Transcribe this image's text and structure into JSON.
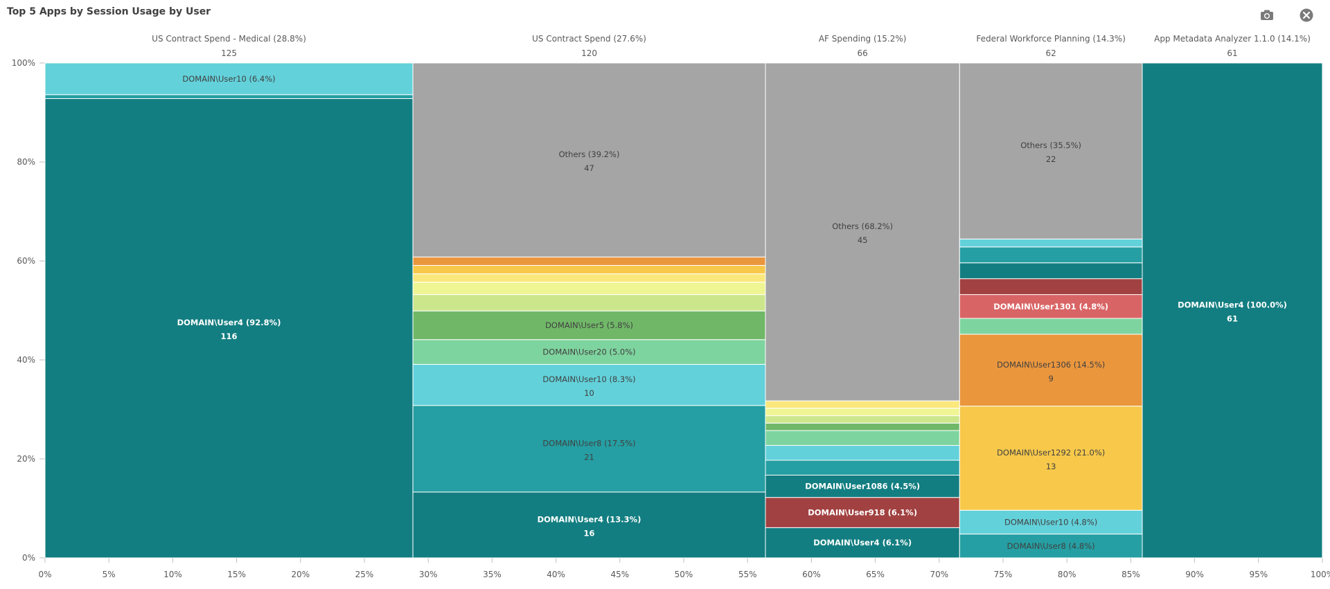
{
  "title": "Top 5 Apps by Session Usage by User",
  "toolbar": {
    "snapshot_icon": "camera-icon",
    "close_icon": "close-circle-icon"
  },
  "colors": {
    "teal_dark": "#137e81",
    "teal": "#259fa3",
    "teal_light": "#62d1da",
    "green": "#70b868",
    "green_light": "#7ed49e",
    "lime": "#cce68c",
    "yellow_light": "#eff592",
    "yellow": "#fbe87c",
    "yellow_dark": "#f7c84a",
    "orange": "#ea963d",
    "red_light": "#d96465",
    "red_dark": "#a24141",
    "gray": "#a5a5a5"
  },
  "chart_data": {
    "type": "mekko",
    "title": "Top 5 Apps by Session Usage by User",
    "x_axis": {
      "ticks": [
        "0%",
        "5%",
        "10%",
        "15%",
        "20%",
        "25%",
        "30%",
        "35%",
        "40%",
        "45%",
        "50%",
        "55%",
        "60%",
        "65%",
        "70%",
        "75%",
        "80%",
        "85%",
        "90%",
        "95%",
        "100%"
      ]
    },
    "y_axis": {
      "ticks": [
        "0%",
        "20%",
        "40%",
        "60%",
        "80%",
        "100%"
      ]
    },
    "columns": [
      {
        "name": "US Contract Spend - Medical (28.8%)",
        "total": "125",
        "share": 28.8,
        "segments": [
          {
            "pct": 92.8,
            "color": "#137e81",
            "label": "DOMAIN\\User4 (92.8%)",
            "value": "116",
            "text": "light"
          },
          {
            "pct": 0.8,
            "color": "#259fa3"
          },
          {
            "pct": 6.4,
            "color": "#62d1da",
            "label": "DOMAIN\\User10 (6.4%)",
            "text": "dark"
          }
        ]
      },
      {
        "name": "US Contract Spend (27.6%)",
        "total": "120",
        "share": 27.6,
        "segments": [
          {
            "pct": 13.3,
            "color": "#137e81",
            "label": "DOMAIN\\User4 (13.3%)",
            "value": "16",
            "text": "light"
          },
          {
            "pct": 17.5,
            "color": "#259fa3",
            "label": "DOMAIN\\User8 (17.5%)",
            "value": "21",
            "text": "dark"
          },
          {
            "pct": 8.3,
            "color": "#62d1da",
            "label": "DOMAIN\\User10 (8.3%)",
            "value": "10",
            "text": "dark"
          },
          {
            "pct": 5.0,
            "color": "#7ed49e",
            "label": "DOMAIN\\User20 (5.0%)",
            "text": "dark"
          },
          {
            "pct": 5.8,
            "color": "#70b868",
            "label": "DOMAIN\\User5 (5.8%)",
            "text": "dark"
          },
          {
            "pct": 3.3,
            "color": "#cce68c"
          },
          {
            "pct": 2.5,
            "color": "#eff592"
          },
          {
            "pct": 1.7,
            "color": "#fbe87c"
          },
          {
            "pct": 1.7,
            "color": "#f7c84a"
          },
          {
            "pct": 1.7,
            "color": "#ea963d"
          },
          {
            "pct": 39.2,
            "color": "#a5a5a5",
            "label": "Others (39.2%)",
            "value": "47",
            "text": "dark"
          }
        ]
      },
      {
        "name": "AF Spending (15.2%)",
        "total": "66",
        "share": 15.2,
        "segments": [
          {
            "pct": 6.1,
            "color": "#137e81",
            "label": "DOMAIN\\User4 (6.1%)",
            "text": "light"
          },
          {
            "pct": 6.1,
            "color": "#a24141",
            "label": "DOMAIN\\User918 (6.1%)",
            "text": "light"
          },
          {
            "pct": 4.5,
            "color": "#137e81",
            "label": "DOMAIN\\User1086 (4.5%)",
            "text": "light"
          },
          {
            "pct": 3.0,
            "color": "#259fa3"
          },
          {
            "pct": 3.0,
            "color": "#62d1da"
          },
          {
            "pct": 3.0,
            "color": "#7ed49e"
          },
          {
            "pct": 1.5,
            "color": "#70b868"
          },
          {
            "pct": 1.5,
            "color": "#cce68c"
          },
          {
            "pct": 1.5,
            "color": "#eff592"
          },
          {
            "pct": 1.5,
            "color": "#fbe87c"
          },
          {
            "pct": 68.2,
            "color": "#a5a5a5",
            "label": "Others (68.2%)",
            "value": "45",
            "text": "dark"
          }
        ]
      },
      {
        "name": "Federal Workforce Planning (14.3%)",
        "total": "62",
        "share": 14.3,
        "segments": [
          {
            "pct": 4.8,
            "color": "#259fa3",
            "label": "DOMAIN\\User8 (4.8%)",
            "text": "dark"
          },
          {
            "pct": 4.8,
            "color": "#62d1da",
            "label": "DOMAIN\\User10 (4.8%)",
            "text": "dark"
          },
          {
            "pct": 21.0,
            "color": "#f7c84a",
            "label": "DOMAIN\\User1292 (21.0%)",
            "value": "13",
            "text": "dark"
          },
          {
            "pct": 14.5,
            "color": "#ea963d",
            "label": "DOMAIN\\User1306 (14.5%)",
            "value": "9",
            "text": "dark"
          },
          {
            "pct": 3.2,
            "color": "#7ed49e"
          },
          {
            "pct": 4.8,
            "color": "#d96465",
            "label": "DOMAIN\\User1301 (4.8%)",
            "text": "light"
          },
          {
            "pct": 3.2,
            "color": "#a24141"
          },
          {
            "pct": 3.2,
            "color": "#137e81"
          },
          {
            "pct": 3.2,
            "color": "#259fa3"
          },
          {
            "pct": 1.6,
            "color": "#62d1da"
          },
          {
            "pct": 35.5,
            "color": "#a5a5a5",
            "label": "Others (35.5%)",
            "value": "22",
            "text": "dark"
          }
        ]
      },
      {
        "name": "App Metadata Analyzer 1.1.0 (14.1%)",
        "total": "61",
        "share": 14.1,
        "segments": [
          {
            "pct": 100.0,
            "color": "#137e81",
            "label": "DOMAIN\\User4 (100.0%)",
            "value": "61",
            "text": "light"
          }
        ]
      }
    ]
  }
}
